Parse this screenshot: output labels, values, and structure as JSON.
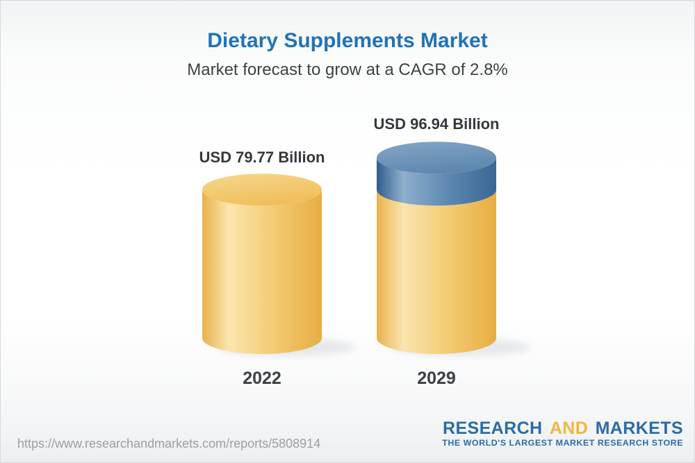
{
  "title": "Dietary Supplements Market",
  "subtitle": "Market forecast to grow at a CAGR of 2.8%",
  "chart_data": {
    "type": "bar",
    "bar_style": "3d-cylinder",
    "categories": [
      "2022",
      "2029"
    ],
    "values": [
      79.77,
      96.94
    ],
    "value_labels": [
      "USD 79.77 Billion",
      "USD 96.94 Billion"
    ],
    "unit": "USD Billion",
    "cagr_percent": 2.8,
    "title": "Dietary Supplements Market",
    "subtitle": "Market forecast to grow at a CAGR of 2.8%",
    "axes": "none",
    "gridlines": false,
    "legend": "none",
    "base_segment_color": "#f2c464",
    "growth_segment_color": "#55799e",
    "growth_segment": {
      "bar": "2029",
      "from": 79.77,
      "to": 96.94
    }
  },
  "bars": [
    {
      "year": "2022",
      "value": 79.77,
      "label": "USD 79.77 Billion"
    },
    {
      "year": "2029",
      "value": 96.94,
      "label": "USD 96.94 Billion"
    }
  ],
  "footer": {
    "url": "https://www.researchandmarkets.com/reports/5808914",
    "logo": {
      "research": "RESEARCH",
      "and": "AND",
      "markets": "MARKETS",
      "tagline": "THE WORLD'S LARGEST MARKET RESEARCH STORE"
    }
  },
  "colors": {
    "title_blue": "#2173b5",
    "text_dark": "#35393d",
    "url_gray": "#9aa0a5",
    "logo_blue": "#2d6ba6",
    "logo_gold": "#f0b73e",
    "gold_dark": "#e8ae45",
    "gold_light": "#fbe4ae",
    "blue_dark": "#305d8c",
    "blue_light": "#8fafcd"
  }
}
